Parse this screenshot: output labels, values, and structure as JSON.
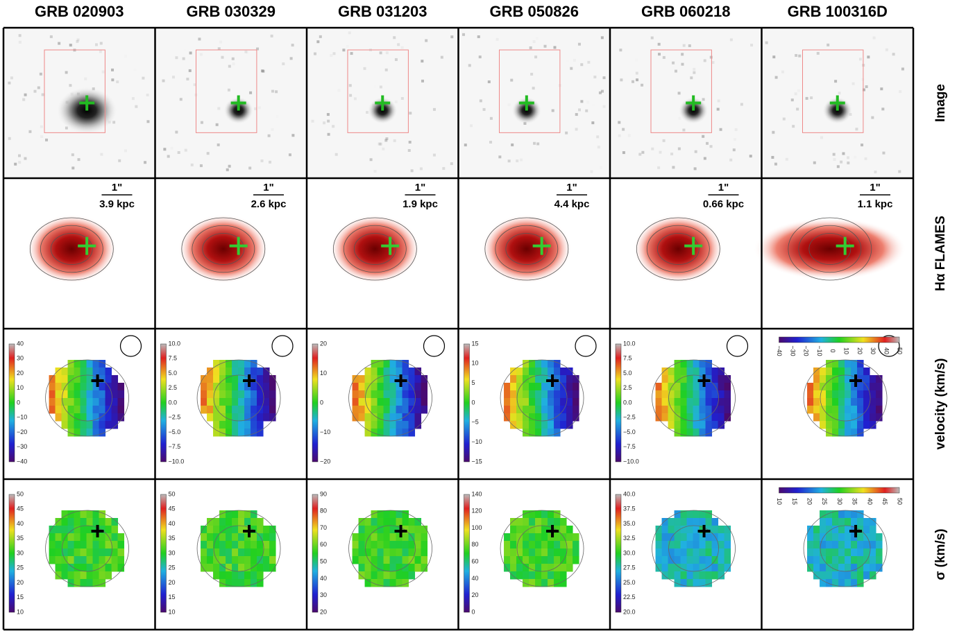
{
  "columns": [
    "GRB 020903",
    "GRB 030329",
    "GRB 031203",
    "GRB 050826",
    "GRB 060218",
    "GRB 100316D"
  ],
  "rows": [
    "Image",
    "Hα FLAMES",
    "velocity (km/s)",
    "σ (km/s)"
  ],
  "scale_bars": [
    {
      "angle": "1\"",
      "distance": "3.9 kpc"
    },
    {
      "angle": "1\"",
      "distance": "2.6 kpc"
    },
    {
      "angle": "1\"",
      "distance": "1.9 kpc"
    },
    {
      "angle": "1\"",
      "distance": "4.4 kpc"
    },
    {
      "angle": "1\"",
      "distance": "0.66 kpc"
    },
    {
      "angle": "1\"",
      "distance": "1.1 kpc"
    }
  ],
  "velocity_colorbars": [
    [
      "40",
      "30",
      "20",
      "10",
      "0",
      "−10",
      "−20",
      "−30",
      "−40"
    ],
    [
      "10.0",
      "7.5",
      "5.0",
      "2.5",
      "0.0",
      "−2.5",
      "−5.0",
      "−7.5",
      "−10.0"
    ],
    [
      "20",
      "10",
      "0",
      "−10",
      "−20"
    ],
    [
      "15",
      "10",
      "5",
      "0",
      "−5",
      "−10",
      "−15"
    ],
    [
      "10.0",
      "7.5",
      "5.0",
      "2.5",
      "0.0",
      "−2.5",
      "−5.0",
      "−7.5",
      "−10.0"
    ],
    [
      "50",
      "40",
      "30",
      "20",
      "10",
      "0",
      "−10",
      "−20",
      "−30",
      "−40"
    ]
  ],
  "sigma_colorbars": [
    [
      "50",
      "45",
      "40",
      "35",
      "30",
      "25",
      "20",
      "15",
      "10"
    ],
    [
      "50",
      "45",
      "40",
      "35",
      "30",
      "25",
      "20",
      "15",
      "10"
    ],
    [
      "90",
      "80",
      "70",
      "60",
      "50",
      "40",
      "30",
      "20"
    ],
    [
      "140",
      "120",
      "100",
      "80",
      "60",
      "40",
      "20",
      "0"
    ],
    [
      "40.0",
      "37.5",
      "35.0",
      "32.5",
      "30.0",
      "27.5",
      "25.0",
      "22.5",
      "20.0"
    ],
    [
      "50",
      "45",
      "40",
      "35",
      "30",
      "25",
      "20",
      "15",
      "10"
    ]
  ]
}
